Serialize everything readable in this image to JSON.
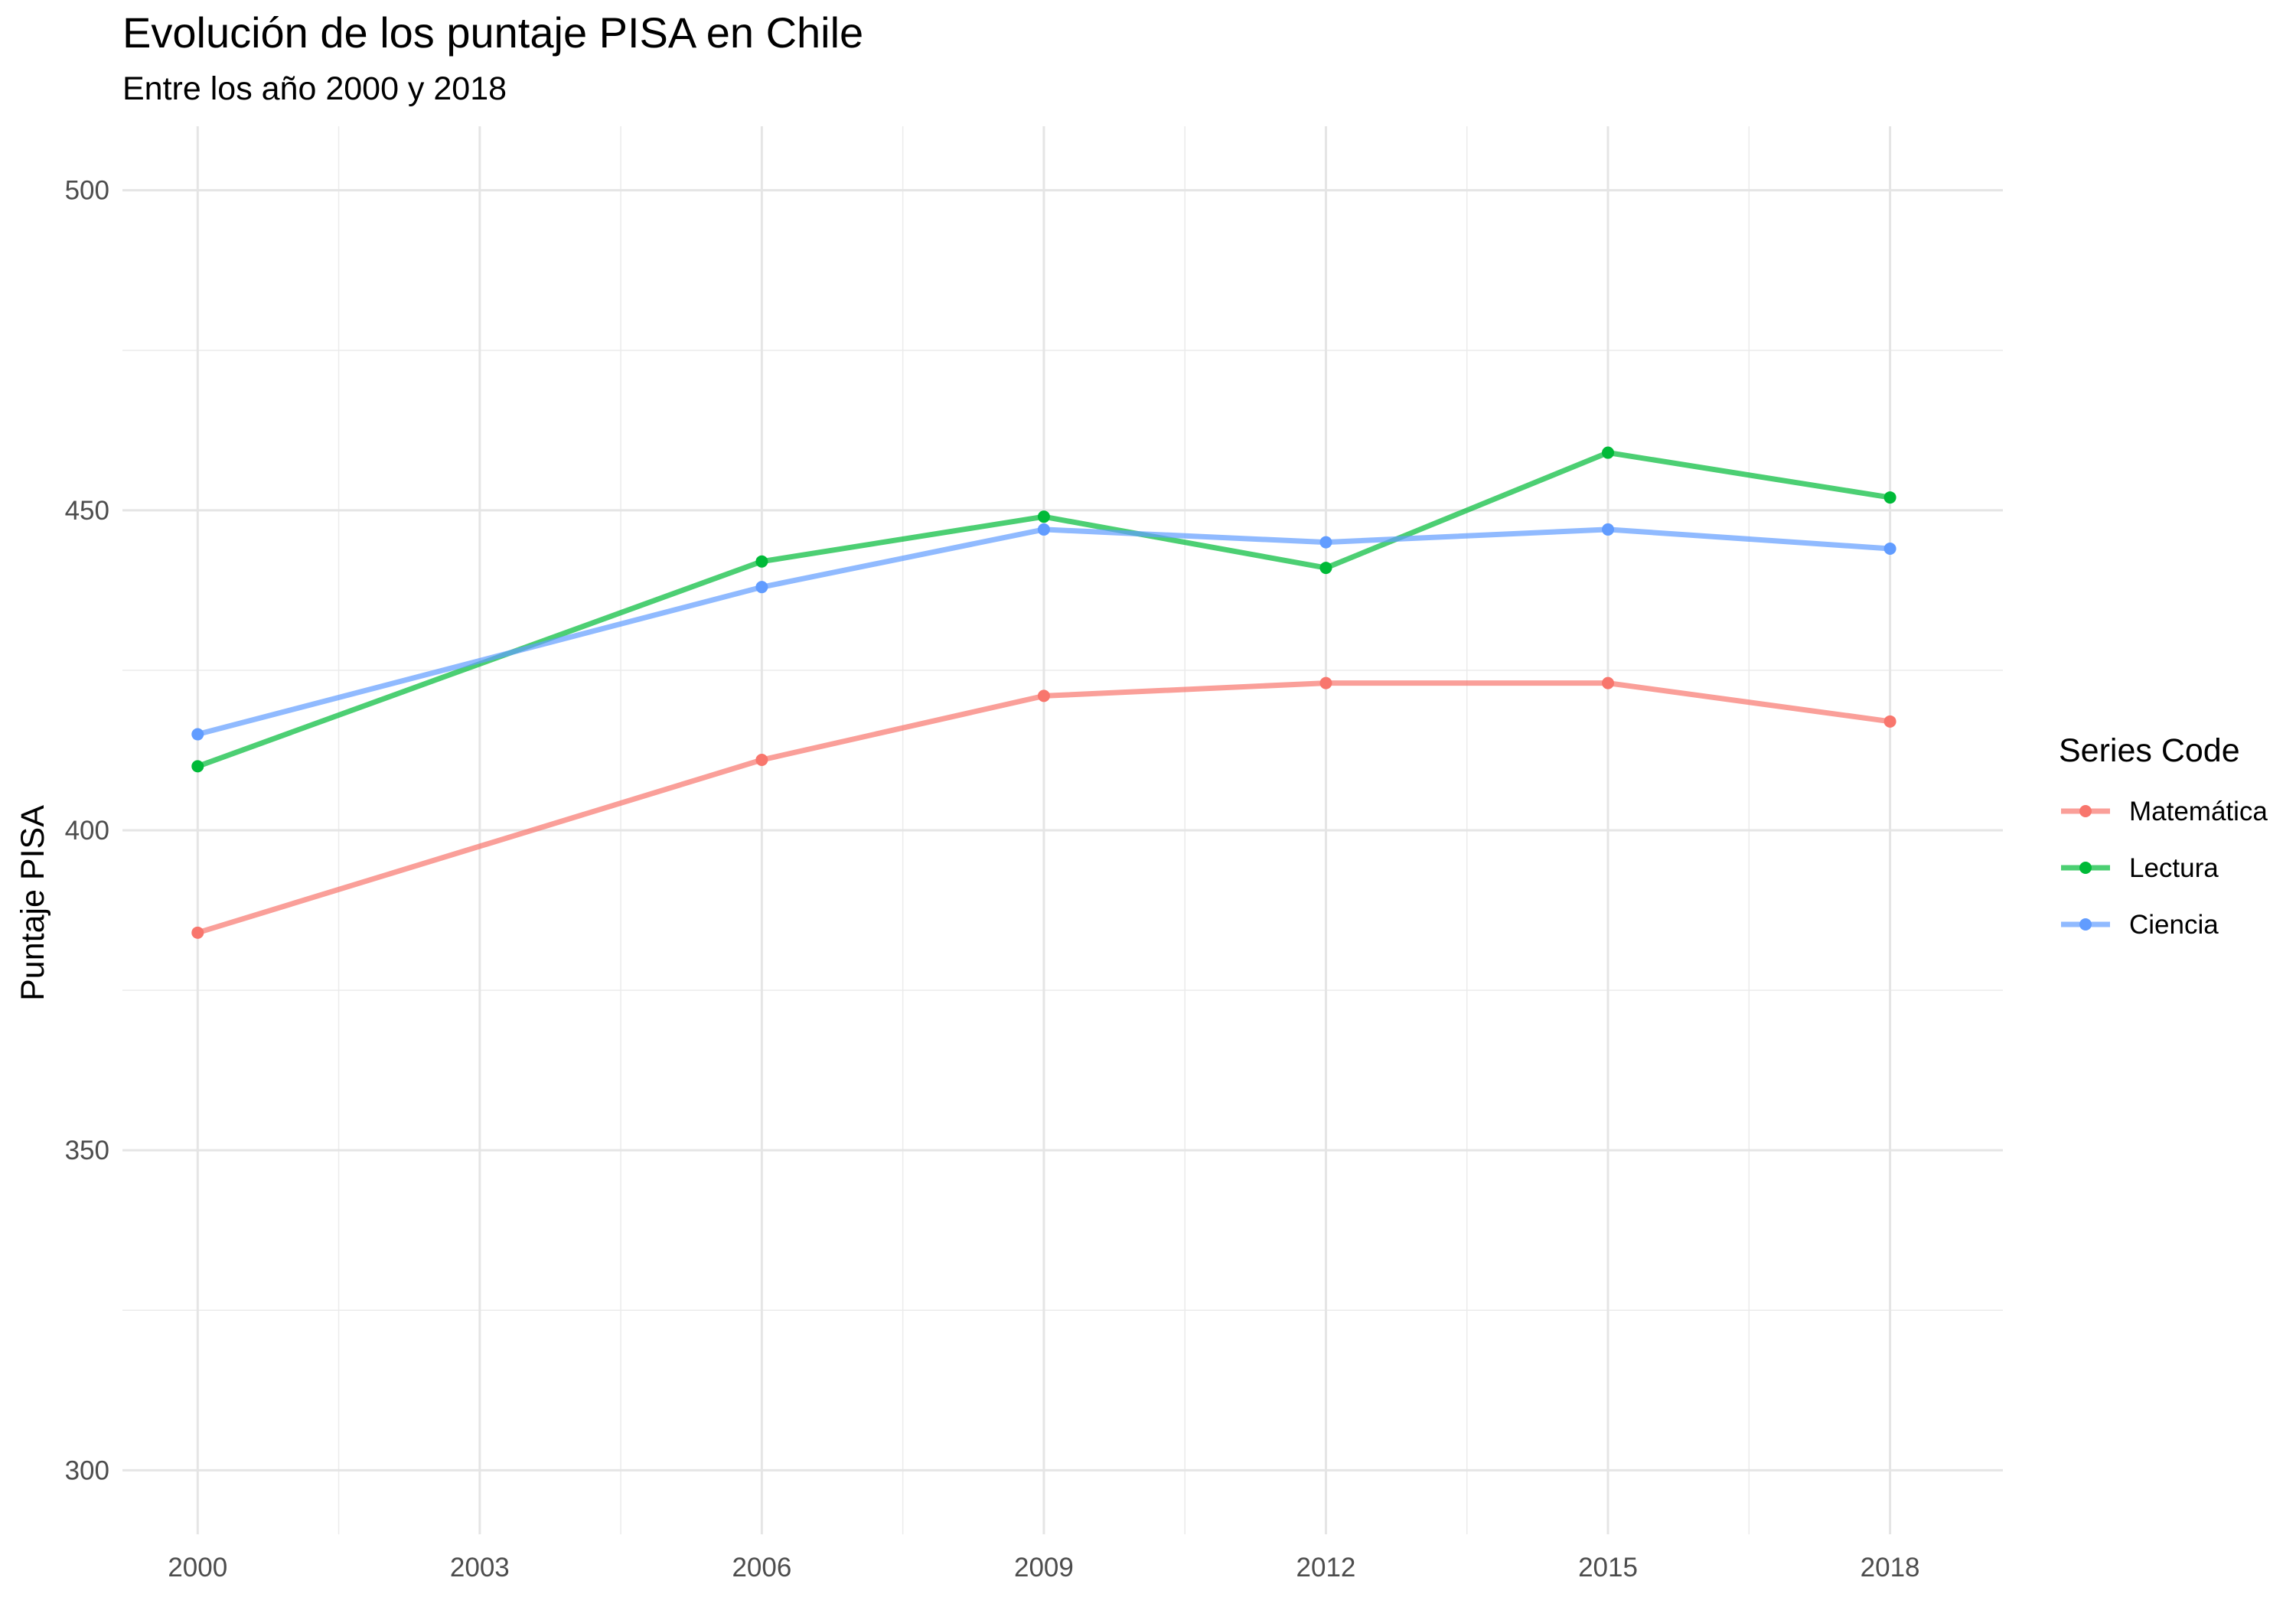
{
  "chart_data": {
    "type": "line",
    "title": "Evolución de los puntaje PISA en Chile",
    "subtitle": "Entre los año 2000 y 2018",
    "xlabel": "",
    "ylabel": "Puntaje PISA",
    "x": [
      2000,
      2006,
      2009,
      2012,
      2015,
      2018
    ],
    "xticks": [
      2000,
      2003,
      2006,
      2009,
      2012,
      2015,
      2018
    ],
    "yticks": [
      300,
      350,
      400,
      450,
      500
    ],
    "xlim": [
      1999.2,
      2019.2
    ],
    "ylim": [
      290,
      510
    ],
    "grid": true,
    "legend": {
      "title": "Series Code",
      "position": "right"
    },
    "series": [
      {
        "name": "Matemática",
        "color": "#F8766D",
        "values": [
          384,
          411,
          421,
          423,
          423,
          417
        ]
      },
      {
        "name": "Lectura",
        "color": "#00BA38",
        "values": [
          410,
          442,
          449,
          441,
          459,
          452
        ]
      },
      {
        "name": "Ciencia",
        "color": "#619CFF",
        "values": [
          415,
          438,
          447,
          445,
          447,
          444
        ]
      }
    ]
  }
}
